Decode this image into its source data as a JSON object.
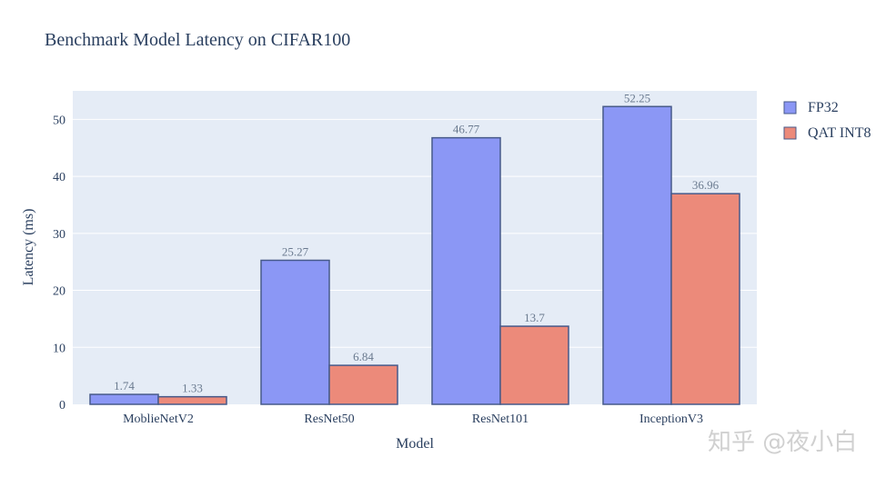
{
  "chart_data": {
    "type": "bar",
    "title": "Benchmark Model Latency on CIFAR100",
    "xlabel": "Model",
    "ylabel": "Latency (ms)",
    "categories": [
      "MoblieNetV2",
      "ResNet50",
      "ResNet101",
      "InceptionV3"
    ],
    "ylim": [
      0,
      55
    ],
    "yticks": [
      0,
      10,
      20,
      30,
      40,
      50
    ],
    "grid": true,
    "legend_position": "top-right",
    "series": [
      {
        "name": "FP32",
        "values": [
          1.74,
          25.27,
          46.77,
          52.25
        ],
        "color": "#8b97f5",
        "labels": [
          "1.74",
          "25.27",
          "46.77",
          "52.25"
        ]
      },
      {
        "name": "QAT INT8",
        "values": [
          1.33,
          6.84,
          13.7,
          36.96
        ],
        "color": "#ec8a7a",
        "labels": [
          "1.33",
          "6.84",
          "13.7",
          "36.96"
        ]
      }
    ],
    "colors": {
      "plot_bg": "#e5ecf6",
      "grid": "#ffffff",
      "bar_outline": "#475a8a",
      "text": "#2a3f5f"
    }
  },
  "watermark": "知乎 @夜小白"
}
